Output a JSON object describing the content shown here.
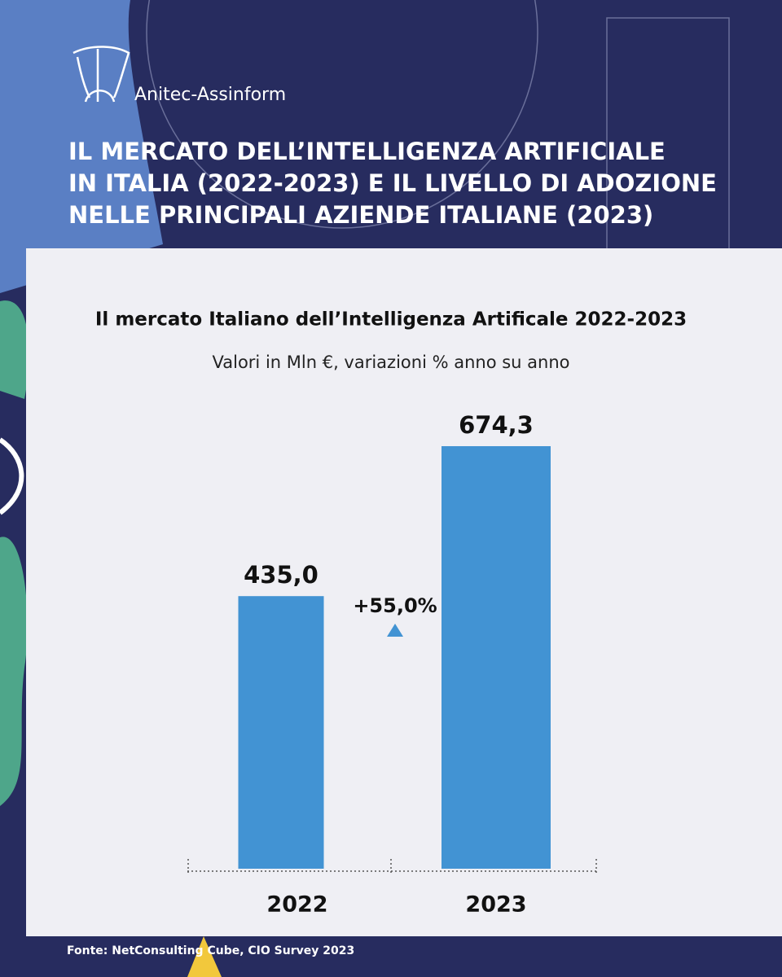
{
  "chart_data": {
    "type": "bar",
    "brand": "Anitec-Assinform",
    "header_title": [
      "IL MERCATO DELL’INTELLIGENZA ARTIFICIALE",
      "IN ITALIA (2022-2023) E IL LIVELLO DI ADOZIONE",
      "NELLE PRINCIPALI AZIENDE ITALIANE (2023)"
    ],
    "title": "Il mercato Italiano dell’Intelligenza Artificale 2022-2023",
    "subtitle": "Valori in Mln €, variazioni % anno su anno",
    "categories": [
      "2022",
      "2023"
    ],
    "values": [
      435.0,
      674.3
    ],
    "value_labels": [
      "435,0",
      "674,3"
    ],
    "color": "#4293d3",
    "annotation": "+55,0%",
    "source": "Fonte: NetConsulting Cube, CIO Survey 2023"
  }
}
